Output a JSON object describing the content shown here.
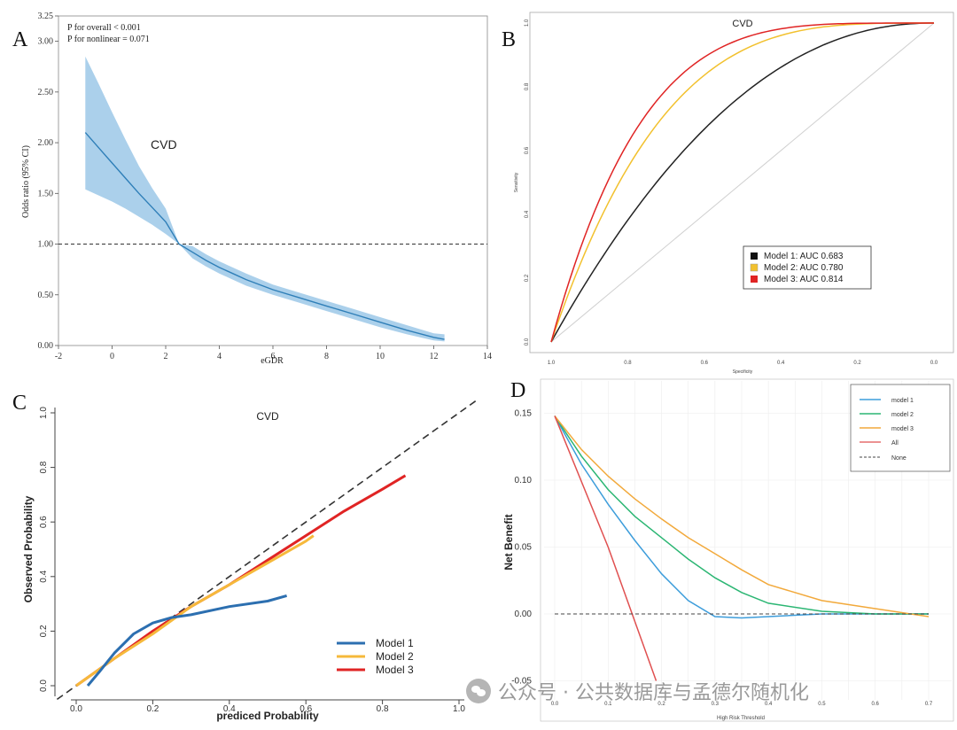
{
  "chart_data": [
    {
      "panel": "A",
      "type": "line",
      "title": "CVD",
      "xlabel": "eGDR",
      "ylabel": "Odds ratio (95% CI)",
      "annotations": [
        "P for overall < 0.001",
        "P for nonlinear = 0.071"
      ],
      "xlim": [
        -2,
        14
      ],
      "ylim": [
        0,
        3.25
      ],
      "xticks": [
        -2,
        0,
        2,
        4,
        6,
        8,
        10,
        12,
        14
      ],
      "yticks": [
        "0.00",
        "0.50",
        "1.00",
        "1.50",
        "2.00",
        "2.50",
        "3.00",
        "3.25"
      ],
      "reference_line": 1.0,
      "x": [
        -1.0,
        -0.5,
        0.0,
        0.5,
        1.0,
        1.5,
        2.0,
        2.5,
        3.0,
        3.5,
        4.0,
        4.5,
        5.0,
        6.0,
        7.0,
        8.0,
        9.0,
        10.0,
        11.0,
        12.0,
        12.4
      ],
      "or": [
        2.1,
        1.95,
        1.8,
        1.65,
        1.5,
        1.36,
        1.22,
        1.0,
        0.92,
        0.84,
        0.77,
        0.71,
        0.65,
        0.55,
        0.47,
        0.39,
        0.31,
        0.23,
        0.15,
        0.08,
        0.06
      ],
      "lower": [
        1.54,
        1.48,
        1.42,
        1.35,
        1.27,
        1.19,
        1.1,
        1.0,
        0.86,
        0.78,
        0.71,
        0.65,
        0.59,
        0.5,
        0.42,
        0.34,
        0.26,
        0.18,
        0.11,
        0.05,
        0.04
      ],
      "upper": [
        2.85,
        2.58,
        2.3,
        2.03,
        1.77,
        1.55,
        1.35,
        1.0,
        0.98,
        0.9,
        0.83,
        0.77,
        0.71,
        0.6,
        0.52,
        0.44,
        0.36,
        0.28,
        0.2,
        0.12,
        0.11
      ]
    },
    {
      "panel": "B",
      "type": "line",
      "title": "CVD",
      "xlabel": "Specificity",
      "ylabel": "Sensitivity",
      "xticks": [
        "1.0",
        "0.8",
        "0.6",
        "0.4",
        "0.2",
        "0.0"
      ],
      "yticks": [
        "0.0",
        "0.2",
        "0.4",
        "0.6",
        "0.8",
        "1.0"
      ],
      "legend": [
        {
          "label": "Model 1: AUC 0.683",
          "color": "#111111"
        },
        {
          "label": "Model 2: AUC 0.780",
          "color": "#f2c12e"
        },
        {
          "label": "Model 3: AUC 0.814",
          "color": "#e02424"
        }
      ],
      "series": [
        {
          "name": "Model 1",
          "auc": 0.683,
          "color": "#222222"
        },
        {
          "name": "Model 2",
          "auc": 0.78,
          "color": "#f2c12e"
        },
        {
          "name": "Model 3",
          "auc": 0.814,
          "color": "#e02424"
        }
      ]
    },
    {
      "panel": "C",
      "type": "line",
      "title": "CVD",
      "xlabel": "prediced Probability",
      "ylabel": "Observed Probability",
      "xlim": [
        0,
        1
      ],
      "ylim": [
        0,
        1
      ],
      "xticks": [
        "0.0",
        "0.2",
        "0.4",
        "0.6",
        "0.8",
        "1.0"
      ],
      "yticks": [
        "0.0",
        "0.2",
        "0.4",
        "0.6",
        "0.8",
        "1.0"
      ],
      "legend": [
        "Model 1",
        "Model 2",
        "Model 3"
      ],
      "series": [
        {
          "name": "Model 1",
          "color": "#2c6fb0",
          "x": [
            0.03,
            0.06,
            0.1,
            0.15,
            0.2,
            0.25,
            0.3,
            0.4,
            0.5,
            0.55
          ],
          "y": [
            0.0,
            0.05,
            0.12,
            0.19,
            0.23,
            0.25,
            0.26,
            0.29,
            0.31,
            0.33
          ]
        },
        {
          "name": "Model 2",
          "color": "#f6b93b",
          "x": [
            0.0,
            0.1,
            0.2,
            0.3,
            0.4,
            0.5,
            0.6,
            0.62
          ],
          "y": [
            0.0,
            0.1,
            0.19,
            0.29,
            0.37,
            0.45,
            0.53,
            0.55
          ]
        },
        {
          "name": "Model 3",
          "color": "#e02424",
          "x": [
            0.0,
            0.1,
            0.2,
            0.3,
            0.4,
            0.5,
            0.6,
            0.7,
            0.8,
            0.86
          ],
          "y": [
            0.0,
            0.1,
            0.2,
            0.29,
            0.37,
            0.46,
            0.55,
            0.64,
            0.72,
            0.77
          ]
        }
      ]
    },
    {
      "panel": "D",
      "type": "line",
      "xlabel": "High Risk Threshold",
      "ylabel": "Net Benefit",
      "xlim": [
        0,
        0.7
      ],
      "ylim": [
        -0.05,
        0.15
      ],
      "xticks": [
        "0.0",
        "0.1",
        "0.2",
        "0.3",
        "0.4",
        "0.5",
        "0.6",
        "0.7"
      ],
      "yticks": [
        "-0.05",
        "0.00",
        "0.05",
        "0.10",
        "0.15"
      ],
      "legend": [
        "model 1",
        "model 2",
        "model 3",
        "All",
        "None"
      ],
      "series": [
        {
          "name": "model 1",
          "color": "#3d9ddb",
          "x": [
            0,
            0.05,
            0.1,
            0.15,
            0.2,
            0.25,
            0.3,
            0.35,
            0.4,
            0.5,
            0.6,
            0.7
          ],
          "y": [
            0.148,
            0.112,
            0.082,
            0.055,
            0.03,
            0.01,
            -0.002,
            -0.003,
            -0.002,
            0.0,
            0.0,
            0.0
          ]
        },
        {
          "name": "model 2",
          "color": "#2bb673",
          "x": [
            0,
            0.05,
            0.1,
            0.15,
            0.2,
            0.25,
            0.3,
            0.35,
            0.4,
            0.5,
            0.6,
            0.7
          ],
          "y": [
            0.148,
            0.118,
            0.093,
            0.073,
            0.057,
            0.041,
            0.027,
            0.016,
            0.008,
            0.002,
            0.0,
            0.0
          ]
        },
        {
          "name": "model 3",
          "color": "#f2a93b",
          "x": [
            0,
            0.05,
            0.1,
            0.15,
            0.2,
            0.25,
            0.3,
            0.35,
            0.4,
            0.5,
            0.6,
            0.7
          ],
          "y": [
            0.148,
            0.123,
            0.103,
            0.086,
            0.071,
            0.057,
            0.045,
            0.033,
            0.022,
            0.01,
            0.004,
            -0.002
          ]
        },
        {
          "name": "All",
          "color": "#e05050",
          "x": [
            0,
            0.1,
            0.19
          ],
          "y": [
            0.148,
            0.05,
            -0.05
          ]
        },
        {
          "name": "None",
          "color": "#444444",
          "x": [
            0,
            0.7
          ],
          "y": [
            0.0,
            0.0
          ]
        }
      ]
    }
  ],
  "panels": {
    "A": "A",
    "B": "B",
    "C": "C",
    "D": "D"
  },
  "watermark": "公众号 · 公共数据库与孟德尔随机化"
}
